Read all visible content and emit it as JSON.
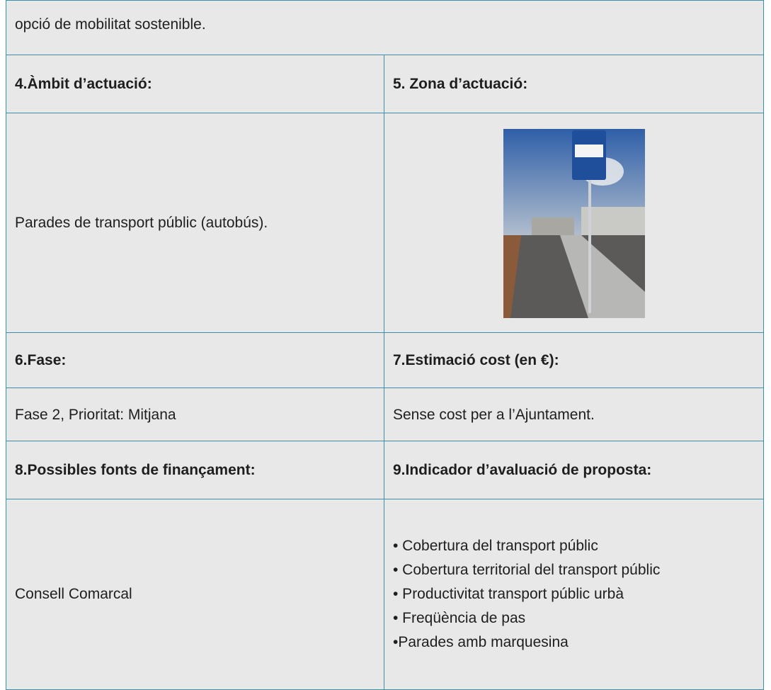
{
  "table": {
    "intro": "opció de mobilitat sostenible.",
    "rows": [
      [
        "4.Àmbit d’actuació:",
        "5. Zona d’actuació:"
      ],
      [
        "Parades de transport públic (autobús)."
      ],
      [
        "6.Fase:",
        "7.Estimació cost (en €):"
      ],
      [
        "Fase 2, Prioritat: Mitjana",
        "Sense cost per a l’Ajuntament."
      ],
      [
        "8.Possibles fonts de finançament:",
        "9.Indicador d’avaluació de proposta:"
      ],
      [
        "Consell Comarcal",
        [
          "• Cobertura del transport públic",
          "• Cobertura territorial del transport públic",
          "• Productivitat transport públic urbà",
          "• Freqüència de pas",
          "•Parades amb marquesina"
        ]
      ]
    ]
  }
}
